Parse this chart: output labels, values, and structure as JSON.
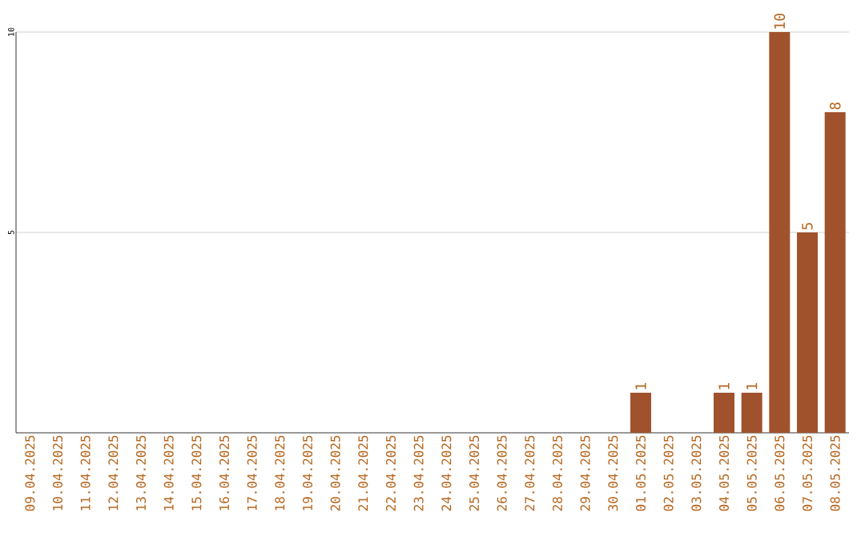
{
  "chart_data": {
    "type": "bar",
    "categories": [
      "09.04.2025",
      "10.04.2025",
      "11.04.2025",
      "12.04.2025",
      "13.04.2025",
      "14.04.2025",
      "15.04.2025",
      "16.04.2025",
      "17.04.2025",
      "18.04.2025",
      "19.04.2025",
      "20.04.2025",
      "21.04.2025",
      "22.04.2025",
      "23.04.2025",
      "24.04.2025",
      "25.04.2025",
      "26.04.2025",
      "27.04.2025",
      "28.04.2025",
      "29.04.2025",
      "30.04.2025",
      "01.05.2025",
      "02.05.2025",
      "03.05.2025",
      "04.05.2025",
      "05.05.2025",
      "06.05.2025",
      "07.05.2025",
      "08.05.2025"
    ],
    "values": [
      0,
      0,
      0,
      0,
      0,
      0,
      0,
      0,
      0,
      0,
      0,
      0,
      0,
      0,
      0,
      0,
      0,
      0,
      0,
      0,
      0,
      0,
      1,
      0,
      0,
      1,
      1,
      10,
      5,
      8
    ],
    "value_labels": [
      null,
      null,
      null,
      null,
      null,
      null,
      null,
      null,
      null,
      null,
      null,
      null,
      null,
      null,
      null,
      null,
      null,
      null,
      null,
      null,
      null,
      null,
      "1",
      null,
      null,
      "1",
      "1",
      "10",
      "5",
      "8"
    ],
    "color": "#a0522d",
    "ylim": [
      0,
      10
    ],
    "yticks": [
      5,
      10
    ],
    "grid": "y"
  }
}
